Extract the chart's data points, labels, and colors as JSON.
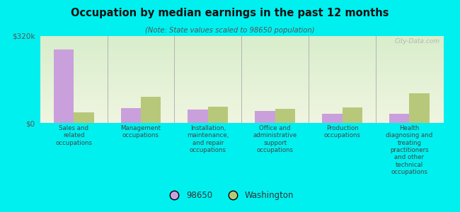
{
  "title": "Occupation by median earnings in the past 12 months",
  "subtitle": "(Note: State values scaled to 98650 population)",
  "categories": [
    "Sales and\nrelated\noccupations",
    "Management\noccupations",
    "Installation,\nmaintenance,\nand repair\noccupations",
    "Office and\nadministrative\nsupport\noccupations",
    "Production\noccupations",
    "Health\ndiagnosing and\ntreating\npractitioners\nand other\ntechnical\noccupations"
  ],
  "values_98650": [
    270000,
    55000,
    50000,
    45000,
    35000,
    35000
  ],
  "values_washington": [
    40000,
    95000,
    60000,
    52000,
    58000,
    110000
  ],
  "color_98650": "#c9a0dc",
  "color_washington": "#b8c87a",
  "background_color": "#00f0f0",
  "grad_bottom": "#f0f5e0",
  "grad_top": "#d8eecc",
  "ylim": [
    0,
    320000
  ],
  "ytick_labels": [
    "$0",
    "$320k"
  ],
  "watermark": "City-Data.com",
  "legend_98650": "98650",
  "legend_washington": "Washington",
  "bar_width": 0.3
}
